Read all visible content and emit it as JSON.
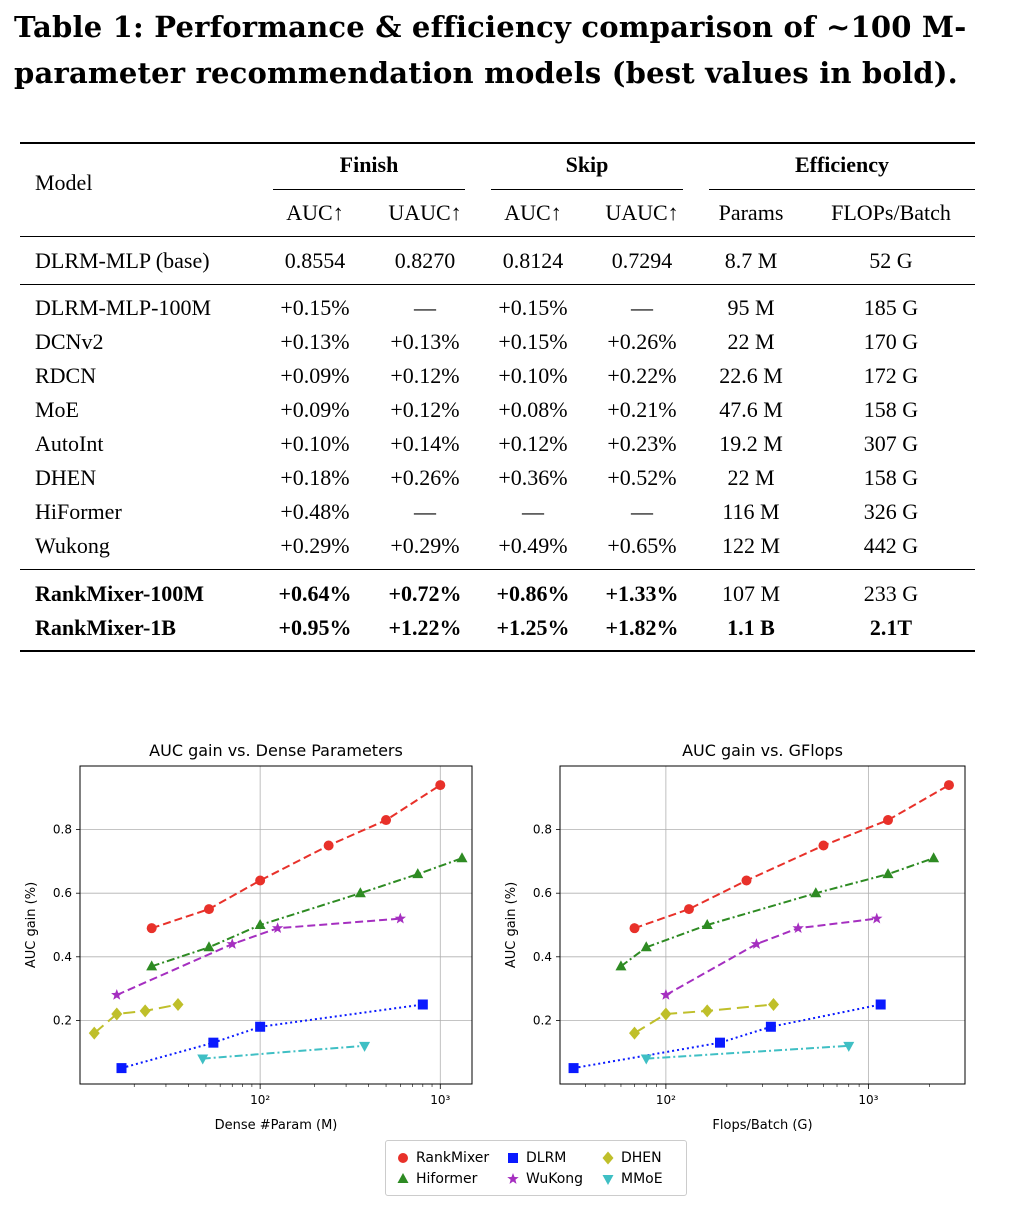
{
  "caption": "Table 1: Performance & efficiency comparison of ~100 M-parameter recommendation models (best values in bold).",
  "table": {
    "header_model": "Model",
    "group_headers": [
      "Finish",
      "Skip",
      "Efficiency"
    ],
    "sub_headers": [
      "AUC↑",
      "UAUC↑",
      "AUC↑",
      "UAUC↑",
      "Params",
      "FLOPs/Batch"
    ],
    "base_row": [
      "DLRM-MLP (base)",
      "0.8554",
      "0.8270",
      "0.8124",
      "0.7294",
      "8.7 M",
      "52 G"
    ],
    "rows": [
      [
        "DLRM-MLP-100M",
        "+0.15%",
        "—",
        "+0.15%",
        "—",
        "95 M",
        "185 G"
      ],
      [
        "DCNv2",
        "+0.13%",
        "+0.13%",
        "+0.15%",
        "+0.26%",
        "22 M",
        "170 G"
      ],
      [
        "RDCN",
        "+0.09%",
        "+0.12%",
        "+0.10%",
        "+0.22%",
        "22.6 M",
        "172 G"
      ],
      [
        "MoE",
        "+0.09%",
        "+0.12%",
        "+0.08%",
        "+0.21%",
        "47.6 M",
        "158 G"
      ],
      [
        "AutoInt",
        "+0.10%",
        "+0.14%",
        "+0.12%",
        "+0.23%",
        "19.2 M",
        "307 G"
      ],
      [
        "DHEN",
        "+0.18%",
        "+0.26%",
        "+0.36%",
        "+0.52%",
        "22 M",
        "158 G"
      ],
      [
        "HiFormer",
        "+0.48%",
        "—",
        "—",
        "—",
        "116 M",
        "326 G"
      ],
      [
        "Wukong",
        "+0.29%",
        "+0.29%",
        "+0.49%",
        "+0.65%",
        "122 M",
        "442 G"
      ]
    ],
    "best_rows": [
      [
        "RankMixer-100M",
        "+0.64%",
        "+0.72%",
        "+0.86%",
        "+1.33%",
        "107 M",
        "233 G"
      ],
      [
        "RankMixer-1B",
        "+0.95%",
        "+1.22%",
        "+1.25%",
        "+1.82%",
        "1.1 B",
        "2.1T"
      ]
    ]
  },
  "chart_data": [
    {
      "type": "line",
      "title": "AUC gain vs. Dense Parameters",
      "xlabel": "Dense #Param (M)",
      "ylabel": "AUC gain (%)",
      "xscale": "log",
      "xlim": [
        10,
        1500
      ],
      "ylim": [
        0.0,
        1.0
      ],
      "yticks": [
        "0.2",
        "0.4",
        "0.6",
        "0.8"
      ],
      "xticks": [
        "10²",
        "10³"
      ],
      "grid": true,
      "series": [
        {
          "name": "RankMixer",
          "color": "#e8312a",
          "marker": "circle",
          "dash": "dashed",
          "x": [
            25,
            52,
            100,
            240,
            500,
            1000
          ],
          "y": [
            0.49,
            0.55,
            0.64,
            0.75,
            0.83,
            0.94
          ]
        },
        {
          "name": "Hiformer",
          "color": "#2e8b23",
          "marker": "triangle",
          "dash": "dashdot",
          "x": [
            25,
            52,
            100,
            360,
            750,
            1320
          ],
          "y": [
            0.37,
            0.43,
            0.5,
            0.6,
            0.66,
            0.71
          ]
        },
        {
          "name": "DLRM",
          "color": "#0a1aff",
          "marker": "square",
          "dash": "dotted",
          "x": [
            17,
            55,
            100,
            800
          ],
          "y": [
            0.05,
            0.13,
            0.18,
            0.25
          ]
        },
        {
          "name": "WuKong",
          "color": "#a52fc0",
          "marker": "star",
          "dash": "dashed",
          "x": [
            16,
            70,
            125,
            600
          ],
          "y": [
            0.28,
            0.44,
            0.49,
            0.52
          ]
        },
        {
          "name": "DHEN",
          "color": "#bfbf2a",
          "marker": "diamond",
          "dash": "longdash",
          "x": [
            12,
            16,
            23,
            35
          ],
          "y": [
            0.16,
            0.22,
            0.23,
            0.25
          ]
        },
        {
          "name": "MMoE",
          "color": "#3fbfc4",
          "marker": "tri-down",
          "dash": "dashdot",
          "x": [
            48,
            380
          ],
          "y": [
            0.08,
            0.12
          ]
        }
      ]
    },
    {
      "type": "line",
      "title": "AUC gain vs. GFlops",
      "xlabel": "Flops/Batch (G)",
      "ylabel": "AUC gain (%)",
      "xscale": "log",
      "xlim": [
        30,
        3000
      ],
      "ylim": [
        0.0,
        1.0
      ],
      "yticks": [
        "0.2",
        "0.4",
        "0.6",
        "0.8"
      ],
      "xticks": [
        "10²",
        "10³"
      ],
      "grid": true,
      "series": [
        {
          "name": "RankMixer",
          "color": "#e8312a",
          "marker": "circle",
          "dash": "dashed",
          "x": [
            70,
            130,
            250,
            600,
            1250,
            2500
          ],
          "y": [
            0.49,
            0.55,
            0.64,
            0.75,
            0.83,
            0.94
          ]
        },
        {
          "name": "Hiformer",
          "color": "#2e8b23",
          "marker": "triangle",
          "dash": "dashdot",
          "x": [
            60,
            80,
            160,
            550,
            1250,
            2100
          ],
          "y": [
            0.37,
            0.43,
            0.5,
            0.6,
            0.66,
            0.71
          ]
        },
        {
          "name": "DLRM",
          "color": "#0a1aff",
          "marker": "square",
          "dash": "dotted",
          "x": [
            35,
            185,
            330,
            1150
          ],
          "y": [
            0.05,
            0.13,
            0.18,
            0.25
          ]
        },
        {
          "name": "WuKong",
          "color": "#a52fc0",
          "marker": "star",
          "dash": "dashed",
          "x": [
            100,
            280,
            450,
            1100
          ],
          "y": [
            0.28,
            0.44,
            0.49,
            0.52
          ]
        },
        {
          "name": "DHEN",
          "color": "#bfbf2a",
          "marker": "diamond",
          "dash": "longdash",
          "x": [
            70,
            100,
            160,
            340
          ],
          "y": [
            0.16,
            0.22,
            0.23,
            0.25
          ]
        },
        {
          "name": "MMoE",
          "color": "#3fbfc4",
          "marker": "tri-down",
          "dash": "dashdot",
          "x": [
            80,
            800
          ],
          "y": [
            0.08,
            0.12
          ]
        }
      ]
    }
  ],
  "legend": {
    "placement": "bottom-center",
    "entries": [
      {
        "name": "RankMixer",
        "color": "#e8312a",
        "marker": "circle"
      },
      {
        "name": "Hiformer",
        "color": "#2e8b23",
        "marker": "triangle"
      },
      {
        "name": "DLRM",
        "color": "#0a1aff",
        "marker": "square"
      },
      {
        "name": "WuKong",
        "color": "#a52fc0",
        "marker": "star"
      },
      {
        "name": "DHEN",
        "color": "#bfbf2a",
        "marker": "diamond"
      },
      {
        "name": "MMoE",
        "color": "#3fbfc4",
        "marker": "tri-down"
      }
    ]
  }
}
